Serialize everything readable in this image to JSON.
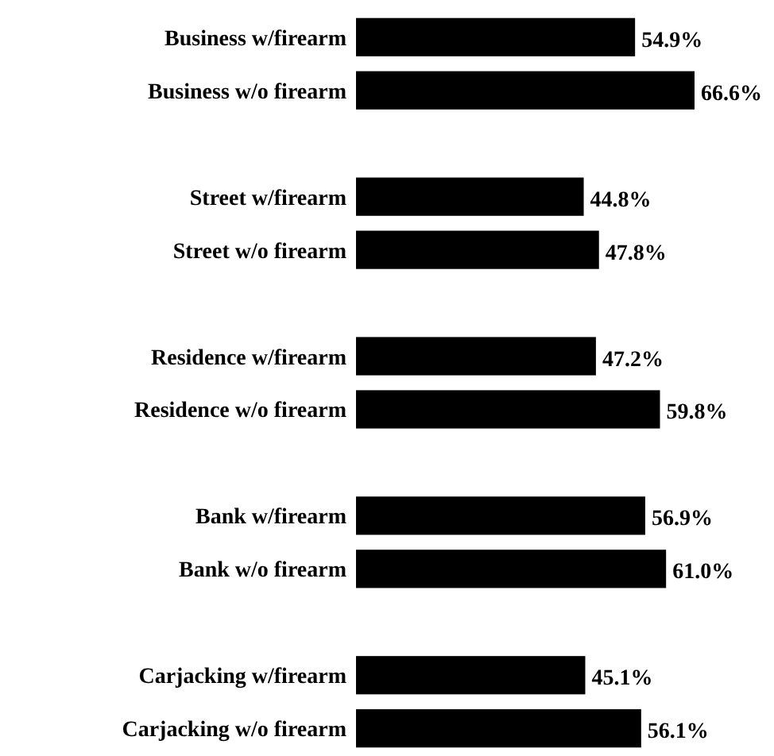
{
  "chart_data": {
    "type": "bar",
    "orientation": "horizontal",
    "categories": [
      "Business w/firearm",
      "Business w/o  firearm",
      null,
      "Street w/firearm",
      "Street w/o  firearm",
      null,
      "Residence w/firearm",
      "Residence w/o  firearm",
      null,
      "Bank w/firearm",
      "Bank w/o  firearm",
      null,
      "Carjacking w/firearm",
      "Carjacking w/o  firearm"
    ],
    "values": [
      54.9,
      66.6,
      null,
      44.8,
      47.8,
      null,
      47.2,
      59.8,
      null,
      56.9,
      61.0,
      null,
      45.1,
      56.1
    ],
    "value_labels": [
      "54.9%",
      "66.6%",
      null,
      "44.8%",
      "47.8%",
      null,
      "47.2%",
      "59.8%",
      null,
      "56.9%",
      "61.0%",
      null,
      "45.1%",
      "56.1%"
    ],
    "color": "#000000",
    "tick_labels": "y"
  }
}
